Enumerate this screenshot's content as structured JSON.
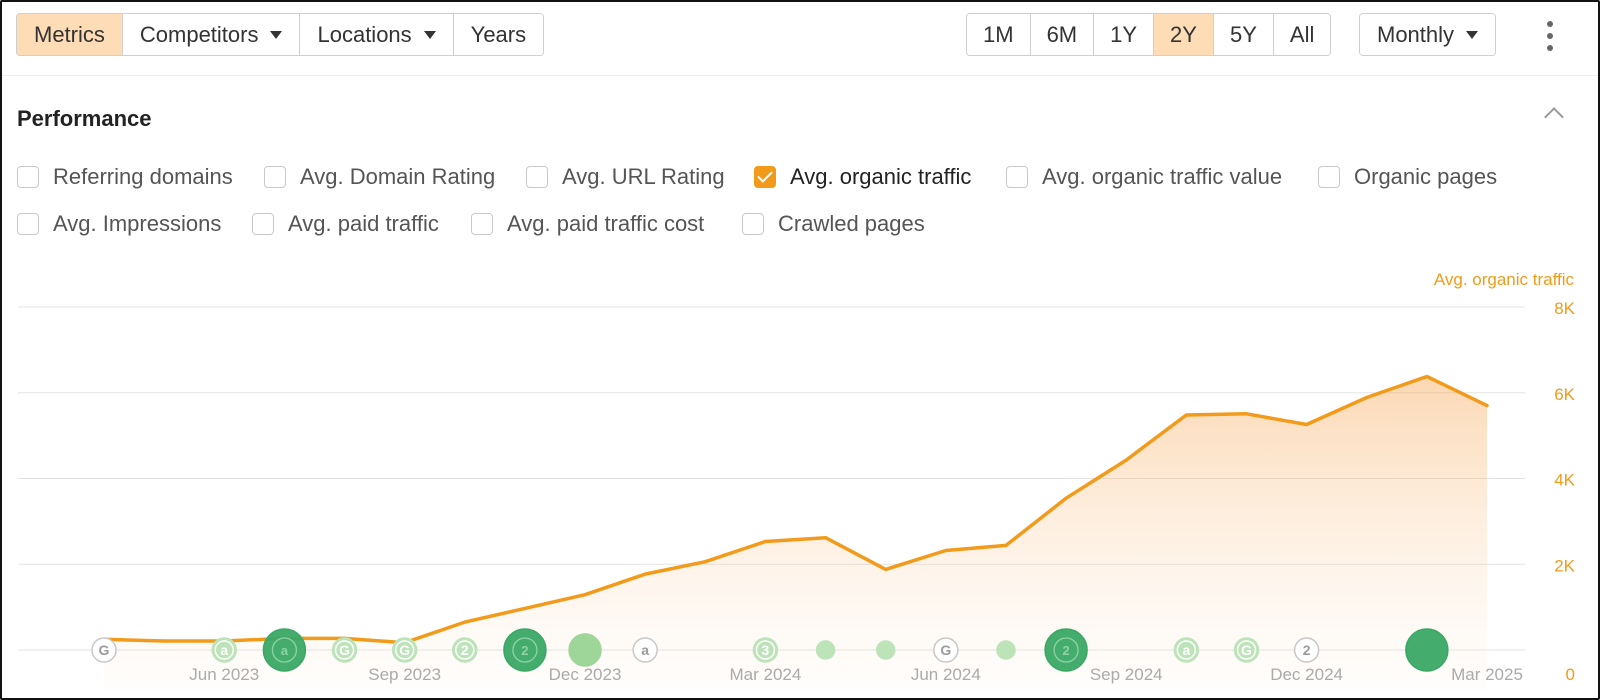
{
  "toolbar": {
    "left_buttons": [
      {
        "label": "Metrics",
        "active": true,
        "dropdown": false
      },
      {
        "label": "Competitors",
        "active": false,
        "dropdown": true
      },
      {
        "label": "Locations",
        "active": false,
        "dropdown": true
      },
      {
        "label": "Years",
        "active": false,
        "dropdown": false
      }
    ],
    "range_buttons": [
      {
        "label": "1M",
        "active": false
      },
      {
        "label": "6M",
        "active": false
      },
      {
        "label": "1Y",
        "active": false
      },
      {
        "label": "2Y",
        "active": true
      },
      {
        "label": "5Y",
        "active": false
      },
      {
        "label": "All",
        "active": false
      }
    ],
    "interval": {
      "label": "Monthly"
    },
    "more_icon": "vertical-dots-icon"
  },
  "section": {
    "title": "Performance",
    "collapse_icon": "chevron-up-icon"
  },
  "metrics": [
    {
      "label": "Referring domains",
      "checked": false
    },
    {
      "label": "Avg. Domain Rating",
      "checked": false
    },
    {
      "label": "Avg. URL Rating",
      "checked": false
    },
    {
      "label": "Avg. organic traffic",
      "checked": true
    },
    {
      "label": "Avg. organic traffic value",
      "checked": false
    },
    {
      "label": "Organic pages",
      "checked": false
    },
    {
      "label": "Avg. Impressions",
      "checked": false
    },
    {
      "label": "Avg. paid traffic",
      "checked": false
    },
    {
      "label": "Avg. paid traffic cost",
      "checked": false
    },
    {
      "label": "Crawled pages",
      "checked": false
    }
  ],
  "colors": {
    "accent": "#f29a1a",
    "active_button": "#fddcb6",
    "gridline": "#e3e3e3",
    "marker_dark": "#3aa865",
    "marker_light": "#9ed69a",
    "axis_text": "#aaaaaa"
  },
  "chart_data": {
    "type": "area",
    "series": [
      {
        "name": "Avg. organic traffic",
        "color": "#f29a1a",
        "values": [
          250,
          210,
          210,
          270,
          270,
          170,
          650,
          970,
          1290,
          1770,
          2060,
          2530,
          2620,
          1880,
          2320,
          2440,
          3540,
          4430,
          5480,
          5510,
          5260,
          5890,
          6380,
          5700
        ]
      }
    ],
    "x": [
      "2023-04",
      "2023-05",
      "2023-06",
      "2023-07",
      "2023-08",
      "2023-09",
      "2023-10",
      "2023-11",
      "2023-12",
      "2024-01",
      "2024-02",
      "2024-03",
      "2024-04",
      "2024-05",
      "2024-06",
      "2024-07",
      "2024-08",
      "2024-09",
      "2024-10",
      "2024-11",
      "2024-12",
      "2025-01",
      "2025-02",
      "2025-03"
    ],
    "x_tick_labels": [
      "Jun 2023",
      "Sep 2023",
      "Dec 2023",
      "Mar 2024",
      "Jun 2024",
      "Sep 2024",
      "Dec 2024",
      "Mar 2025"
    ],
    "x_tick_dates": [
      "2023-06",
      "2023-09",
      "2023-12",
      "2024-03",
      "2024-06",
      "2024-09",
      "2024-12",
      "2025-03"
    ],
    "y_tick_labels": [
      "0",
      "2K",
      "4K",
      "6K",
      "8K"
    ],
    "y_tick_values": [
      0,
      2000,
      4000,
      6000,
      8000
    ],
    "ylim": [
      0,
      8000
    ],
    "y_axis_title": "Avg. organic traffic",
    "grid": true,
    "annotation_markers": [
      {
        "date": "2023-04",
        "label": "G",
        "style": "outline",
        "size": "small"
      },
      {
        "date": "2023-06",
        "label": "a",
        "style": "light",
        "size": "small"
      },
      {
        "date": "2023-07",
        "label": "a",
        "style": "dark",
        "size": "large"
      },
      {
        "date": "2023-08",
        "label": "G",
        "style": "light",
        "size": "small"
      },
      {
        "date": "2023-09",
        "label": "G",
        "style": "light",
        "size": "small"
      },
      {
        "date": "2023-10",
        "label": "2",
        "style": "light",
        "size": "small"
      },
      {
        "date": "2023-11",
        "label": "2",
        "style": "dark",
        "size": "large"
      },
      {
        "date": "2023-12",
        "label": "",
        "style": "green",
        "size": "medium"
      },
      {
        "date": "2024-01",
        "label": "a",
        "style": "outline",
        "size": "small"
      },
      {
        "date": "2024-03",
        "label": "3",
        "style": "light",
        "size": "small"
      },
      {
        "date": "2024-04",
        "label": "",
        "style": "light",
        "size": "tiny"
      },
      {
        "date": "2024-05",
        "label": "",
        "style": "light",
        "size": "tiny"
      },
      {
        "date": "2024-06",
        "label": "G",
        "style": "outline",
        "size": "small"
      },
      {
        "date": "2024-07",
        "label": "",
        "style": "light",
        "size": "tiny"
      },
      {
        "date": "2024-08",
        "label": "2",
        "style": "dark",
        "size": "large"
      },
      {
        "date": "2024-10",
        "label": "a",
        "style": "light",
        "size": "small"
      },
      {
        "date": "2024-11",
        "label": "G",
        "style": "light",
        "size": "small"
      },
      {
        "date": "2024-12",
        "label": "2",
        "style": "outline",
        "size": "small"
      },
      {
        "date": "2025-02",
        "label": "",
        "style": "dark",
        "size": "large"
      }
    ]
  }
}
